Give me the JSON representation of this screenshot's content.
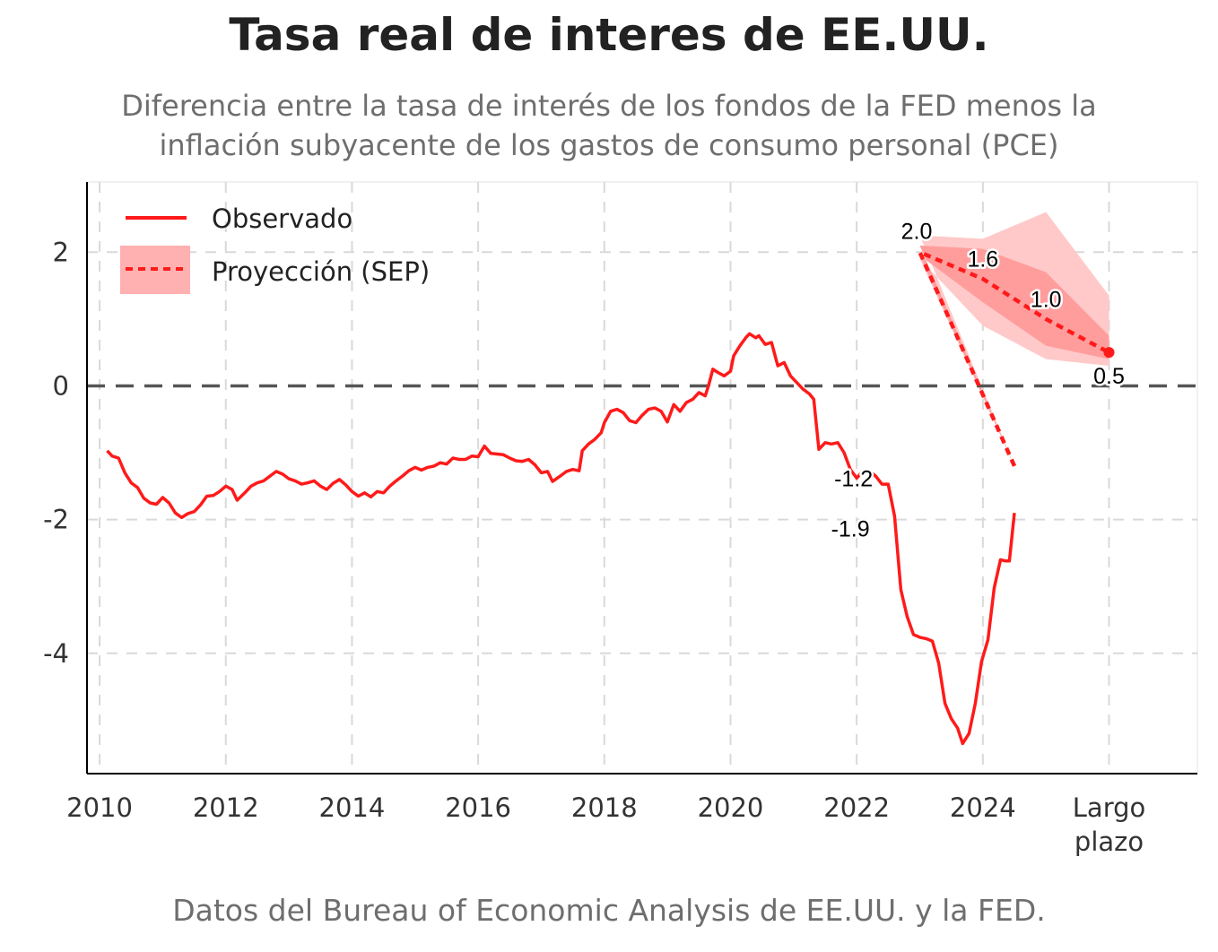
{
  "title": "Tasa real de interes de EE.UU.",
  "subtitle_line1": "Diferencia entre la tasa de interés de los fondos de la FED menos la",
  "subtitle_line2": "inflación subyacente de los gastos de consumo personal (PCE)",
  "caption": "Datos del Bureau of Economic Analysis de EE.UU. y la FED.",
  "colors": {
    "observed": "#ff1a1a",
    "projection": "#ff1a1a",
    "band_outer": "#ffc9c9",
    "band_inner": "#ff9d9d",
    "zero_line": "#555555",
    "grid": "#d9d9d9"
  },
  "chart_data": {
    "type": "line",
    "xlim": [
      2009.8,
      2027.4
    ],
    "ylim": [
      -5.8,
      3.05
    ],
    "x_ticks": [
      {
        "x": 2010,
        "label": "2010"
      },
      {
        "x": 2012,
        "label": "2012"
      },
      {
        "x": 2014,
        "label": "2014"
      },
      {
        "x": 2016,
        "label": "2016"
      },
      {
        "x": 2018,
        "label": "2018"
      },
      {
        "x": 2020,
        "label": "2020"
      },
      {
        "x": 2022,
        "label": "2022"
      },
      {
        "x": 2024,
        "label": "2024"
      },
      {
        "x": 2026,
        "label": "Largo\nplazo"
      }
    ],
    "y_ticks": [
      {
        "y": 2,
        "label": "2"
      },
      {
        "y": 0,
        "label": "0"
      },
      {
        "y": -2,
        "label": "-2"
      },
      {
        "y": -4,
        "label": "-4"
      }
    ],
    "legend": {
      "position": "top-left",
      "entries": [
        "Observado",
        "Proyección (SEP)"
      ]
    },
    "series": [
      {
        "name": "Observado",
        "style": "solid",
        "points": [
          [
            2010.12,
            -0.97
          ],
          [
            2010.2,
            -1.05
          ],
          [
            2010.3,
            -1.08
          ],
          [
            2010.4,
            -1.3
          ],
          [
            2010.5,
            -1.45
          ],
          [
            2010.6,
            -1.52
          ],
          [
            2010.7,
            -1.68
          ],
          [
            2010.8,
            -1.75
          ],
          [
            2010.9,
            -1.77
          ],
          [
            2011.0,
            -1.67
          ],
          [
            2011.1,
            -1.75
          ],
          [
            2011.2,
            -1.9
          ],
          [
            2011.3,
            -1.97
          ],
          [
            2011.4,
            -1.91
          ],
          [
            2011.5,
            -1.88
          ],
          [
            2011.6,
            -1.78
          ],
          [
            2011.7,
            -1.65
          ],
          [
            2011.8,
            -1.64
          ],
          [
            2011.9,
            -1.58
          ],
          [
            2012.0,
            -1.5
          ],
          [
            2012.1,
            -1.55
          ],
          [
            2012.18,
            -1.71
          ],
          [
            2012.3,
            -1.6
          ],
          [
            2012.4,
            -1.5
          ],
          [
            2012.5,
            -1.45
          ],
          [
            2012.6,
            -1.42
          ],
          [
            2012.7,
            -1.35
          ],
          [
            2012.8,
            -1.28
          ],
          [
            2012.9,
            -1.32
          ],
          [
            2013.0,
            -1.39
          ],
          [
            2013.1,
            -1.42
          ],
          [
            2013.2,
            -1.47
          ],
          [
            2013.3,
            -1.45
          ],
          [
            2013.4,
            -1.42
          ],
          [
            2013.5,
            -1.5
          ],
          [
            2013.6,
            -1.55
          ],
          [
            2013.7,
            -1.46
          ],
          [
            2013.8,
            -1.4
          ],
          [
            2013.9,
            -1.48
          ],
          [
            2014.0,
            -1.58
          ],
          [
            2014.1,
            -1.65
          ],
          [
            2014.2,
            -1.6
          ],
          [
            2014.3,
            -1.66
          ],
          [
            2014.4,
            -1.58
          ],
          [
            2014.5,
            -1.6
          ],
          [
            2014.6,
            -1.5
          ],
          [
            2014.7,
            -1.42
          ],
          [
            2014.8,
            -1.35
          ],
          [
            2014.9,
            -1.27
          ],
          [
            2015.0,
            -1.22
          ],
          [
            2015.1,
            -1.26
          ],
          [
            2015.2,
            -1.22
          ],
          [
            2015.3,
            -1.2
          ],
          [
            2015.4,
            -1.15
          ],
          [
            2015.5,
            -1.17
          ],
          [
            2015.6,
            -1.08
          ],
          [
            2015.7,
            -1.1
          ],
          [
            2015.8,
            -1.1
          ],
          [
            2015.9,
            -1.05
          ],
          [
            2016.0,
            -1.06
          ],
          [
            2016.1,
            -0.9
          ],
          [
            2016.2,
            -1.01
          ],
          [
            2016.3,
            -1.02
          ],
          [
            2016.4,
            -1.03
          ],
          [
            2016.5,
            -1.08
          ],
          [
            2016.6,
            -1.12
          ],
          [
            2016.7,
            -1.13
          ],
          [
            2016.8,
            -1.1
          ],
          [
            2016.9,
            -1.18
          ],
          [
            2017.0,
            -1.3
          ],
          [
            2017.1,
            -1.28
          ],
          [
            2017.18,
            -1.43
          ],
          [
            2017.3,
            -1.35
          ],
          [
            2017.4,
            -1.28
          ],
          [
            2017.5,
            -1.25
          ],
          [
            2017.6,
            -1.27
          ],
          [
            2017.65,
            -0.97
          ],
          [
            2017.75,
            -0.87
          ],
          [
            2017.85,
            -0.8
          ],
          [
            2017.95,
            -0.7
          ],
          [
            2018.0,
            -0.55
          ],
          [
            2018.1,
            -0.38
          ],
          [
            2018.2,
            -0.35
          ],
          [
            2018.3,
            -0.4
          ],
          [
            2018.4,
            -0.52
          ],
          [
            2018.5,
            -0.55
          ],
          [
            2018.6,
            -0.44
          ],
          [
            2018.7,
            -0.35
          ],
          [
            2018.8,
            -0.33
          ],
          [
            2018.9,
            -0.38
          ],
          [
            2019.0,
            -0.54
          ],
          [
            2019.1,
            -0.28
          ],
          [
            2019.2,
            -0.38
          ],
          [
            2019.3,
            -0.25
          ],
          [
            2019.4,
            -0.2
          ],
          [
            2019.5,
            -0.1
          ],
          [
            2019.6,
            -0.15
          ],
          [
            2019.65,
            0.0
          ],
          [
            2019.72,
            0.25
          ],
          [
            2019.8,
            0.2
          ],
          [
            2019.9,
            0.15
          ],
          [
            2020.0,
            0.22
          ],
          [
            2020.05,
            0.45
          ],
          [
            2020.15,
            0.6
          ],
          [
            2020.25,
            0.73
          ],
          [
            2020.3,
            0.78
          ],
          [
            2020.4,
            0.72
          ],
          [
            2020.45,
            0.75
          ],
          [
            2020.55,
            0.62
          ],
          [
            2020.65,
            0.65
          ],
          [
            2020.75,
            0.3
          ],
          [
            2020.85,
            0.35
          ],
          [
            2020.95,
            0.15
          ],
          [
            2021.05,
            0.05
          ],
          [
            2021.15,
            -0.05
          ],
          [
            2021.25,
            -0.12
          ],
          [
            2021.32,
            -0.2
          ],
          [
            2021.4,
            -0.95
          ],
          [
            2021.5,
            -0.85
          ],
          [
            2021.6,
            -0.87
          ],
          [
            2021.7,
            -0.85
          ],
          [
            2021.8,
            -1.0
          ],
          [
            2021.9,
            -1.25
          ],
          [
            2022.0,
            -1.38
          ],
          [
            2022.1,
            -1.27
          ],
          [
            2022.2,
            -1.27
          ],
          [
            2022.3,
            -1.35
          ],
          [
            2022.4,
            -1.47
          ],
          [
            2022.5,
            -1.47
          ],
          [
            2022.6,
            -1.95
          ],
          [
            2022.7,
            -3.05
          ],
          [
            2022.8,
            -3.45
          ],
          [
            2022.9,
            -3.72
          ],
          [
            2023.0,
            -3.76
          ],
          [
            2023.1,
            -3.78
          ],
          [
            2023.2,
            -3.82
          ],
          [
            2023.3,
            -4.15
          ],
          [
            2023.4,
            -4.75
          ],
          [
            2023.5,
            -4.98
          ],
          [
            2023.6,
            -5.12
          ],
          [
            2023.68,
            -5.35
          ],
          [
            2023.78,
            -5.2
          ],
          [
            2023.88,
            -4.75
          ],
          [
            2023.98,
            -4.12
          ],
          [
            2024.08,
            -3.8
          ],
          [
            2024.18,
            -3.02
          ],
          [
            2024.28,
            -2.6
          ],
          [
            2024.36,
            -2.62
          ],
          [
            2024.42,
            -2.62
          ],
          [
            2024.5,
            -1.9
          ]
        ]
      },
      {
        "name": "Proyección (SEP)",
        "style": "dashed",
        "points": [
          [
            2024.5,
            -1.2
          ],
          [
            2023.0,
            2.0
          ],
          [
            2024.0,
            1.6
          ],
          [
            2025.0,
            1.0
          ],
          [
            2026.0,
            0.5
          ]
        ]
      }
    ],
    "bands": [
      {
        "level": "outer",
        "upper": [
          [
            2024.5,
            -1.2
          ],
          [
            2023.0,
            2.25
          ],
          [
            2024.0,
            2.2
          ],
          [
            2025.0,
            2.6
          ],
          [
            2026.0,
            1.35
          ]
        ],
        "lower": [
          [
            2024.5,
            -1.2
          ],
          [
            2023.0,
            1.9
          ],
          [
            2024.0,
            0.9
          ],
          [
            2025.0,
            0.4
          ],
          [
            2026.0,
            0.3
          ]
        ]
      },
      {
        "level": "inner",
        "upper": [
          [
            2024.5,
            -1.2
          ],
          [
            2023.0,
            2.1
          ],
          [
            2024.0,
            2.05
          ],
          [
            2025.0,
            1.7
          ],
          [
            2026.0,
            0.75
          ]
        ],
        "lower": [
          [
            2024.5,
            -1.2
          ],
          [
            2023.0,
            1.95
          ],
          [
            2024.0,
            1.25
          ],
          [
            2025.0,
            0.6
          ],
          [
            2026.0,
            0.4
          ]
        ]
      }
    ],
    "annotations": [
      {
        "x": 2022.95,
        "y": 2.2,
        "text": "2.0"
      },
      {
        "x": 2024.0,
        "y": 1.78,
        "text": "1.6"
      },
      {
        "x": 2025.0,
        "y": 1.18,
        "text": "1.0"
      },
      {
        "x": 2026.0,
        "y": 0.03,
        "text": "0.5"
      },
      {
        "x": 2021.95,
        "y": -1.5,
        "text": "-1.2"
      },
      {
        "x": 2021.9,
        "y": -2.25,
        "text": "-1.9"
      }
    ]
  }
}
